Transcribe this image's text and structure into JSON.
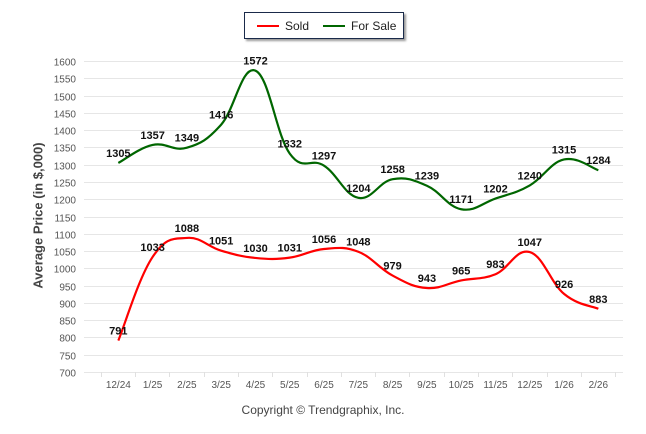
{
  "chart_data": {
    "type": "line",
    "title": "",
    "xlabel": "",
    "ylabel": "Average Price (in $,000)",
    "categories": [
      "12/24",
      "1/25",
      "2/25",
      "3/25",
      "4/25",
      "5/25",
      "6/25",
      "7/25",
      "8/25",
      "9/25",
      "10/25",
      "11/25",
      "12/25",
      "1/26",
      "2/26"
    ],
    "series": [
      {
        "name": "Sold",
        "color": "#ff0000",
        "values": [
          791,
          1033,
          1088,
          1051,
          1030,
          1031,
          1056,
          1048,
          979,
          943,
          965,
          983,
          1047,
          926,
          883
        ]
      },
      {
        "name": "For Sale",
        "color": "#006600",
        "values": [
          1305,
          1357,
          1349,
          1416,
          1572,
          1332,
          1297,
          1204,
          1258,
          1239,
          1171,
          1202,
          1240,
          1315,
          1284
        ]
      }
    ],
    "ylim": [
      700,
      1600
    ],
    "yticks": [
      700,
      750,
      800,
      850,
      900,
      950,
      1000,
      1050,
      1100,
      1150,
      1200,
      1250,
      1300,
      1350,
      1400,
      1450,
      1500,
      1550,
      1600
    ],
    "grid": true,
    "legend_position": "top-center",
    "data_labels": true
  },
  "footer": {
    "copyright": "Copyright © Trendgraphix, Inc."
  }
}
